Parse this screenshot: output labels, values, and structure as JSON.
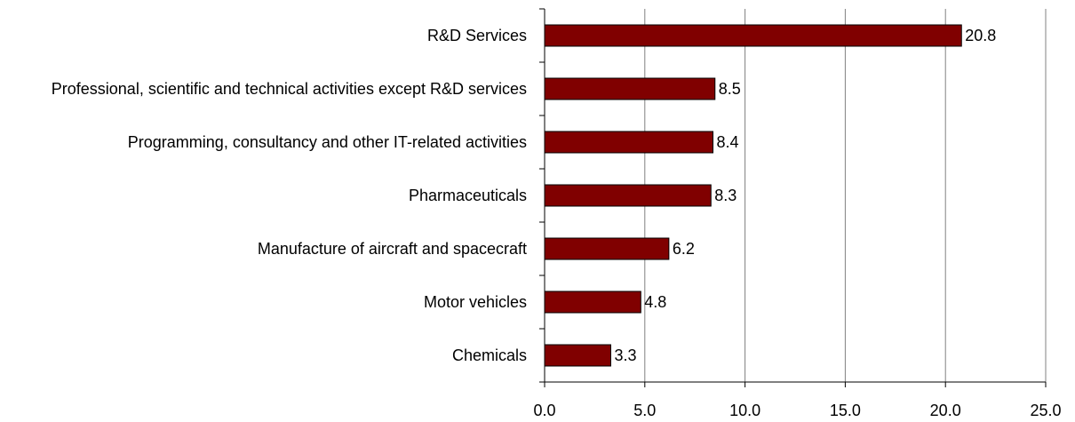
{
  "chart_data": {
    "type": "bar",
    "orientation": "horizontal",
    "categories": [
      "R&D Services",
      "Professional, scientific and technical activities except R&D services",
      "Programming, consultancy and other IT-related activities",
      "Pharmaceuticals",
      "Manufacture of aircraft and spacecraft",
      "Motor vehicles",
      "Chemicals"
    ],
    "values": [
      20.8,
      8.5,
      8.4,
      8.3,
      6.2,
      4.8,
      3.3
    ],
    "color": "#800000",
    "xlim": [
      0,
      25
    ],
    "xticks": [
      {
        "value": 0,
        "label": "0.0"
      },
      {
        "value": 5,
        "label": "5.0"
      },
      {
        "value": 10,
        "label": "10.0"
      },
      {
        "value": 15,
        "label": "15.0"
      },
      {
        "value": 20,
        "label": "20.0"
      },
      {
        "value": 25,
        "label": "25.0"
      }
    ],
    "grid": true
  }
}
